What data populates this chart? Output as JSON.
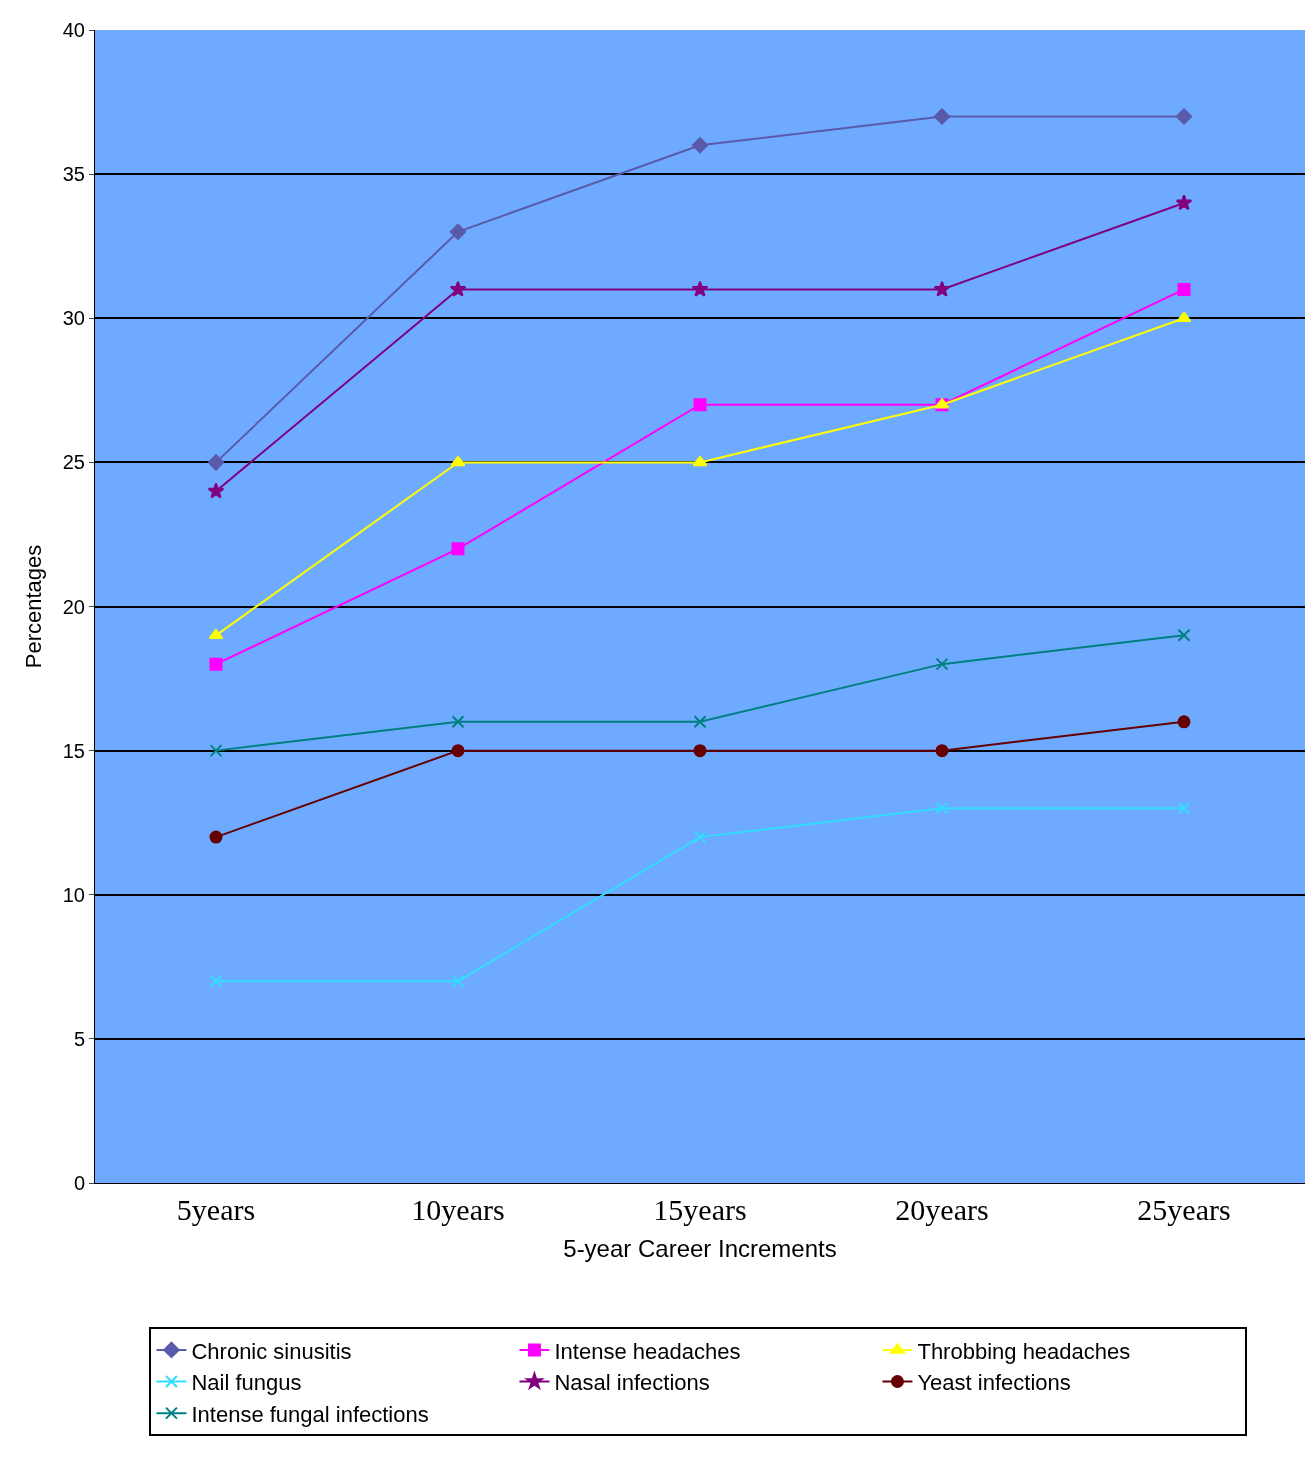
{
  "chart_data": {
    "type": "line",
    "xlabel": "5-year Career Increments",
    "ylabel": "Percentages",
    "categories": [
      "5years",
      "10years",
      "15years",
      "20years",
      "25years"
    ],
    "ylim": [
      0,
      40
    ],
    "yticks": [
      0,
      5,
      10,
      15,
      20,
      25,
      30,
      35,
      40
    ],
    "grid": "y",
    "legend": "bottom",
    "series": [
      {
        "name": "Chronic sinusitis",
        "color": "#5a5aaa",
        "marker": "diamond",
        "values": [
          25,
          33,
          36,
          37,
          37
        ]
      },
      {
        "name": "Intense headaches",
        "color": "#ff00ff",
        "marker": "square",
        "values": [
          18,
          22,
          27,
          27,
          31
        ]
      },
      {
        "name": "Throbbing headaches",
        "color": "#ffff00",
        "marker": "triangle",
        "values": [
          19,
          25,
          25,
          27,
          30
        ]
      },
      {
        "name": "Nail fungus",
        "color": "#33ddff",
        "marker": "cross",
        "values": [
          7,
          7,
          12,
          13,
          13
        ]
      },
      {
        "name": "Nasal infections",
        "color": "#800080",
        "marker": "star",
        "values": [
          24,
          31,
          31,
          31,
          34
        ]
      },
      {
        "name": "Yeast infections",
        "color": "#660000",
        "marker": "circle",
        "values": [
          12,
          15,
          15,
          15,
          16
        ]
      },
      {
        "name": "Intense fungal infections",
        "color": "#008080",
        "marker": "cross",
        "values": [
          15,
          16,
          16,
          18,
          19
        ]
      }
    ]
  }
}
